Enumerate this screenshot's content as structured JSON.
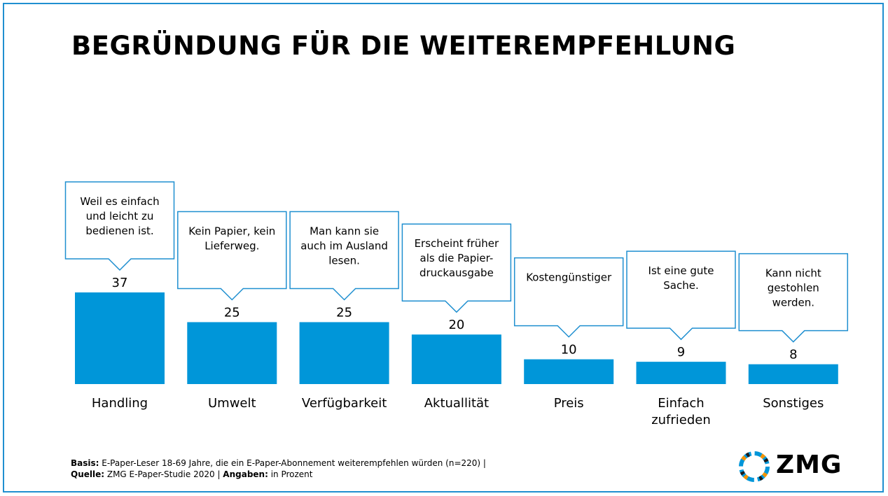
{
  "title": "BEGRÜNDUNG FÜR DIE WEITEREMPFEHLUNG",
  "chart_data": {
    "type": "bar",
    "categories": [
      [
        "Handling"
      ],
      [
        "Umwelt"
      ],
      [
        "Verfügbarkeit"
      ],
      [
        "Aktuallität"
      ],
      [
        "Preis"
      ],
      [
        "Einfach",
        "zufrieden"
      ],
      [
        "Sonstiges"
      ]
    ],
    "values": [
      37,
      25,
      25,
      20,
      10,
      9,
      8
    ],
    "callouts": [
      [
        "Weil es einfach",
        "und leicht zu",
        "bedienen ist."
      ],
      [
        "Kein Papier, kein",
        "Lieferweg."
      ],
      [
        "Man kann sie",
        "auch im Ausland",
        "lesen."
      ],
      [
        "Erscheint früher",
        "als die Papier-",
        "druckausgabe"
      ],
      [
        "Kostengünstiger"
      ],
      [
        "Ist eine gute",
        "Sache."
      ],
      [
        "Kann nicht",
        "gestohlen",
        "werden."
      ]
    ],
    "bar_color": "#0096d9",
    "callout_border_color": "#1f8fd0",
    "grid": false,
    "legend": "none"
  },
  "footer": {
    "basis_label": "Basis:",
    "basis_text": " E-Paper-Leser 18-69 Jahre, die ein E-Paper-Abonnement weiterempfehlen würden (n=220) |",
    "quelle_label": "Quelle:",
    "quelle_text": " ZMG E-Paper-Studie 2020 | ",
    "angaben_label": "Angaben:",
    "angaben_text": " in Prozent"
  },
  "logo": {
    "text": "ZMG",
    "colors": [
      "#0096d9",
      "#f39200",
      "#1a1a1a"
    ]
  }
}
